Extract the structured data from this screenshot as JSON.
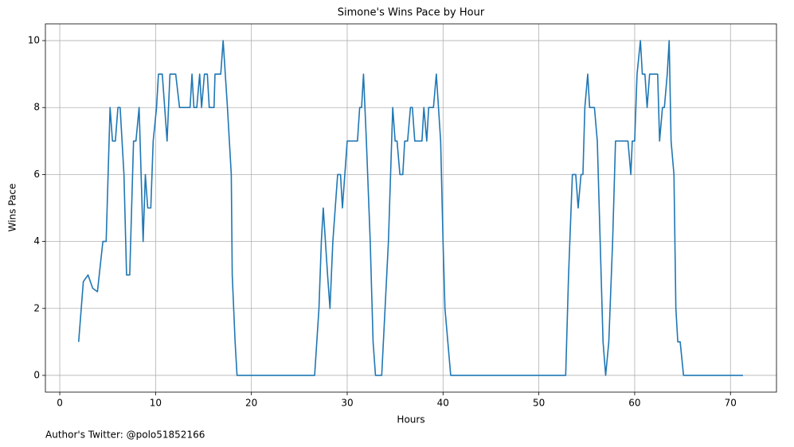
{
  "chart_data": {
    "type": "line",
    "title": "Simone's Wins Pace by Hour",
    "xlabel": "Hours",
    "ylabel": "Wins Pace",
    "annotation": "Author's Twitter: @polo51852166",
    "color": "#1f77b4",
    "grid": true,
    "xlim": [
      -1.5,
      74.8
    ],
    "ylim": [
      -0.5,
      10.5
    ],
    "xticks": [
      0,
      10,
      20,
      30,
      40,
      50,
      60,
      70
    ],
    "yticks": [
      0,
      2,
      4,
      6,
      8,
      10
    ],
    "x": [
      1.97,
      2.46,
      2.95,
      3.44,
      3.93,
      4.5,
      4.84,
      5.25,
      5.5,
      5.8,
      6.07,
      6.3,
      6.7,
      6.97,
      7.3,
      7.7,
      7.95,
      8.28,
      8.7,
      8.93,
      9.18,
      9.5,
      9.75,
      10.1,
      10.3,
      10.7,
      11.2,
      11.5,
      12.1,
      12.5,
      13.6,
      13.8,
      14,
      14.3,
      14.6,
      14.8,
      15.1,
      15.4,
      15.6,
      16.1,
      16.2,
      16.8,
      17.05,
      17.5,
      17.9,
      18.0,
      18.3,
      18.5,
      26.6,
      27.05,
      27.3,
      27.5,
      27.95,
      28.2,
      28.5,
      29,
      29.3,
      29.5,
      30,
      31.07,
      31.3,
      31.5,
      31.7,
      32,
      32.4,
      32.7,
      32.95,
      33.6,
      34.3,
      34.75,
      35,
      35.2,
      35.5,
      35.8,
      36,
      36.3,
      36.6,
      36.8,
      37.05,
      37.8,
      38,
      38.3,
      38.5,
      39,
      39.3,
      39.75,
      40,
      40.2,
      40.5,
      40.8,
      52.8,
      53.1,
      53.5,
      53.85,
      54.1,
      54.4,
      54.6,
      54.8,
      55.1,
      55.3,
      55.8,
      56.1,
      56.4,
      56.7,
      56.97,
      57.3,
      57.7,
      58,
      59.3,
      59.6,
      59.75,
      60,
      60.25,
      60.6,
      60.8,
      61.07,
      61.3,
      61.56,
      62.4,
      62.6,
      62.9,
      63.1,
      63.4,
      63.6,
      63.8,
      64.1,
      64.3,
      64.5,
      64.75,
      65.1,
      71.3
    ],
    "values": [
      1,
      2.8,
      3,
      2.6,
      2.5,
      4,
      4,
      8,
      7,
      7,
      8,
      8,
      6,
      3,
      3,
      7,
      7,
      8,
      4,
      6,
      5,
      5,
      7,
      8,
      9,
      9,
      7,
      9,
      9,
      8,
      8,
      9,
      8,
      8,
      9,
      8,
      9,
      9,
      8,
      8,
      9,
      9,
      10,
      8,
      6,
      3,
      1,
      0,
      0,
      2,
      4,
      5,
      3,
      2,
      4,
      6,
      6,
      5,
      7,
      7,
      8,
      8,
      9,
      7,
      4,
      1,
      0,
      0,
      4,
      8,
      7,
      7,
      6,
      6,
      7,
      7,
      8,
      8,
      7,
      7,
      8,
      7,
      8,
      8,
      9,
      7,
      4,
      2,
      1,
      0,
      0,
      3,
      6,
      6,
      5,
      6,
      6,
      8,
      9,
      8,
      8,
      7,
      4,
      1,
      0,
      1,
      4,
      7,
      7,
      6,
      7,
      7,
      9,
      10,
      9,
      9,
      8,
      9,
      9,
      7,
      8,
      8,
      9,
      10,
      7,
      6,
      2,
      1,
      1,
      0,
      0
    ]
  }
}
